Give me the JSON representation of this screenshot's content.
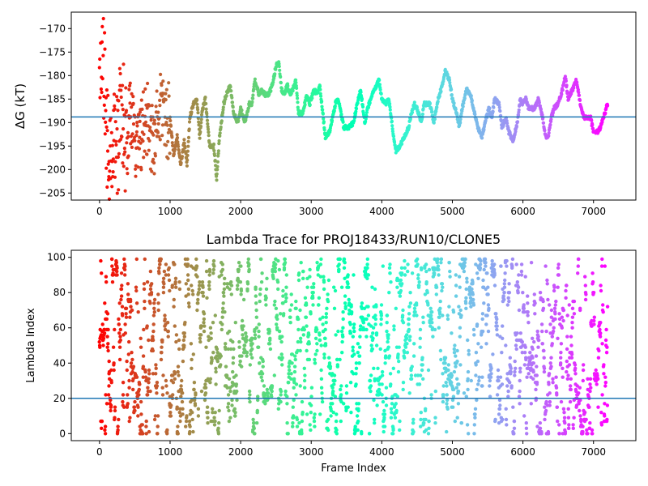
{
  "chart_data": [
    {
      "type": "scatter",
      "title": "",
      "xlabel": "",
      "ylabel": "ΔG (kT)",
      "xlim": [
        -400,
        7600
      ],
      "ylim": [
        -206.5,
        -166.5
      ],
      "xticks": [
        0,
        1000,
        2000,
        3000,
        4000,
        5000,
        6000,
        7000
      ],
      "xtick_labels": [
        "0",
        "1000",
        "2000",
        "3000",
        "4000",
        "5000",
        "6000",
        "7000"
      ],
      "yticks": [
        -170,
        -175,
        -180,
        -185,
        -190,
        -195,
        -200,
        -205
      ],
      "ytick_labels": [
        "−170",
        "−175",
        "−180",
        "−185",
        "−190",
        "−195",
        "−200",
        "−205"
      ],
      "hline": -188.8,
      "hline_color": "#1f77b4",
      "colormap": "rainbow (red at frame 0 → violet at last frame)",
      "grid": false,
      "legend": "none",
      "trace_knots": [
        [
          0,
          -172
        ],
        [
          60,
          -180
        ],
        [
          100,
          -193
        ],
        [
          150,
          -199
        ],
        [
          200,
          -190
        ],
        [
          260,
          -194
        ],
        [
          320,
          -187
        ],
        [
          380,
          -196
        ],
        [
          450,
          -186
        ],
        [
          520,
          -198
        ],
        [
          600,
          -192
        ],
        [
          680,
          -189
        ],
        [
          760,
          -195
        ],
        [
          840,
          -188
        ],
        [
          900,
          -186
        ],
        [
          960,
          -190
        ],
        [
          1000,
          -189
        ],
        [
          1050,
          -197
        ],
        [
          1100,
          -193
        ],
        [
          1150,
          -199
        ],
        [
          1200,
          -194
        ],
        [
          1240,
          -199
        ],
        [
          1280,
          -189
        ],
        [
          1330,
          -186
        ],
        [
          1380,
          -185
        ],
        [
          1420,
          -193
        ],
        [
          1460,
          -187
        ],
        [
          1500,
          -185
        ],
        [
          1560,
          -195
        ],
        [
          1620,
          -195
        ],
        [
          1660,
          -202
        ],
        [
          1700,
          -193
        ],
        [
          1760,
          -186
        ],
        [
          1800,
          -184
        ],
        [
          1850,
          -182
        ],
        [
          1900,
          -188
        ],
        [
          1960,
          -190
        ],
        [
          2000,
          -187
        ],
        [
          2060,
          -190
        ],
        [
          2120,
          -186
        ],
        [
          2160,
          -186
        ],
        [
          2200,
          -181
        ],
        [
          2260,
          -184
        ],
        [
          2300,
          -183
        ],
        [
          2340,
          -184
        ],
        [
          2400,
          -184
        ],
        [
          2450,
          -182
        ],
        [
          2500,
          -178
        ],
        [
          2540,
          -177
        ],
        [
          2580,
          -183
        ],
        [
          2620,
          -184
        ],
        [
          2660,
          -182
        ],
        [
          2700,
          -184
        ],
        [
          2740,
          -183
        ],
        [
          2780,
          -181
        ],
        [
          2820,
          -188
        ],
        [
          2880,
          -188
        ],
        [
          2940,
          -184
        ],
        [
          2980,
          -186
        ],
        [
          3040,
          -183
        ],
        [
          3080,
          -184
        ],
        [
          3120,
          -182
        ],
        [
          3200,
          -193
        ],
        [
          3260,
          -192
        ],
        [
          3300,
          -189
        ],
        [
          3360,
          -185
        ],
        [
          3400,
          -186
        ],
        [
          3460,
          -191
        ],
        [
          3540,
          -191
        ],
        [
          3600,
          -190
        ],
        [
          3640,
          -187
        ],
        [
          3700,
          -183
        ],
        [
          3760,
          -190
        ],
        [
          3800,
          -187
        ],
        [
          3860,
          -184
        ],
        [
          3900,
          -183
        ],
        [
          3960,
          -181
        ],
        [
          4000,
          -185
        ],
        [
          4060,
          -186
        ],
        [
          4100,
          -185
        ],
        [
          4160,
          -192
        ],
        [
          4200,
          -196
        ],
        [
          4260,
          -195
        ],
        [
          4320,
          -193
        ],
        [
          4380,
          -191
        ],
        [
          4420,
          -188
        ],
        [
          4460,
          -186
        ],
        [
          4500,
          -187
        ],
        [
          4560,
          -190
        ],
        [
          4600,
          -186
        ],
        [
          4680,
          -186
        ],
        [
          4740,
          -190
        ],
        [
          4800,
          -185
        ],
        [
          4860,
          -182
        ],
        [
          4900,
          -179
        ],
        [
          4960,
          -181
        ],
        [
          5000,
          -185
        ],
        [
          5060,
          -188
        ],
        [
          5100,
          -191
        ],
        [
          5140,
          -187
        ],
        [
          5200,
          -183
        ],
        [
          5260,
          -184
        ],
        [
          5300,
          -187
        ],
        [
          5360,
          -191
        ],
        [
          5420,
          -193
        ],
        [
          5480,
          -189
        ],
        [
          5520,
          -187
        ],
        [
          5560,
          -189
        ],
        [
          5600,
          -185
        ],
        [
          5660,
          -186
        ],
        [
          5700,
          -191
        ],
        [
          5760,
          -189
        ],
        [
          5800,
          -192
        ],
        [
          5860,
          -194
        ],
        [
          5920,
          -190
        ],
        [
          5960,
          -185
        ],
        [
          6000,
          -186
        ],
        [
          6040,
          -185
        ],
        [
          6080,
          -187
        ],
        [
          6160,
          -187
        ],
        [
          6220,
          -185
        ],
        [
          6280,
          -189
        ],
        [
          6320,
          -193
        ],
        [
          6360,
          -193
        ],
        [
          6400,
          -189
        ],
        [
          6440,
          -187
        ],
        [
          6500,
          -186
        ],
        [
          6560,
          -183
        ],
        [
          6600,
          -180
        ],
        [
          6640,
          -185
        ],
        [
          6700,
          -183
        ],
        [
          6760,
          -181
        ],
        [
          6800,
          -185
        ],
        [
          6860,
          -189
        ],
        [
          6900,
          -189
        ],
        [
          6960,
          -189
        ],
        [
          7000,
          -192
        ],
        [
          7060,
          -192
        ],
        [
          7100,
          -191
        ],
        [
          7160,
          -188
        ],
        [
          7200,
          -186
        ]
      ]
    },
    {
      "type": "scatter",
      "title": "Lambda Trace for PROJ18433/RUN10/CLONE5",
      "xlabel": "Frame Index",
      "ylabel": "Lambda Index",
      "xlim": [
        -400,
        7600
      ],
      "ylim": [
        -4,
        104
      ],
      "xticks": [
        0,
        1000,
        2000,
        3000,
        4000,
        5000,
        6000,
        7000
      ],
      "xtick_labels": [
        "0",
        "1000",
        "2000",
        "3000",
        "4000",
        "5000",
        "6000",
        "7000"
      ],
      "yticks": [
        0,
        20,
        40,
        60,
        80,
        100
      ],
      "ytick_labels": [
        "0",
        "20",
        "40",
        "60",
        "80",
        "100"
      ],
      "hline": 20,
      "hline_color": "#1f77b4",
      "colormap": "rainbow (red at frame 0 → violet at last frame)",
      "grid": false,
      "legend": "none",
      "frame_range": [
        0,
        7200
      ],
      "lambda_range": [
        0,
        99
      ]
    }
  ]
}
